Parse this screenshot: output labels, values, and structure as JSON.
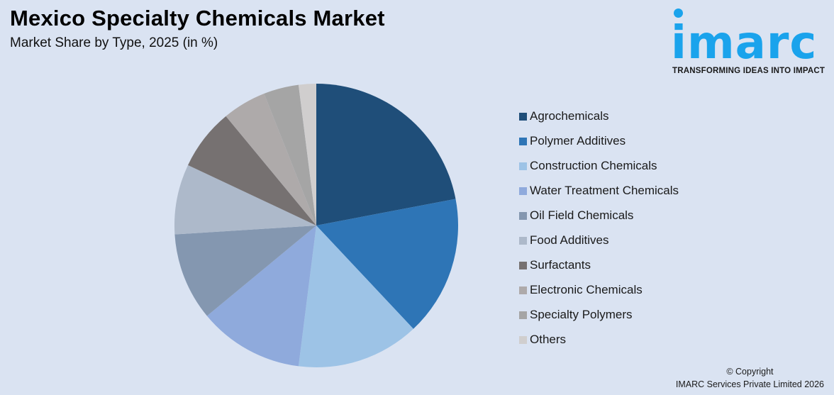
{
  "header": {
    "title": "Mexico Specialty Chemicals Market",
    "subtitle": "Market Share by Type, 2025 (in %)"
  },
  "logo": {
    "wordmark": "imarc",
    "tagline": "TRANSFORMING IDEAS INTO IMPACT",
    "color": "#1aa3ec"
  },
  "footer": {
    "copyright": "© Copyright",
    "company": "IMARC Services Private Limited 2026"
  },
  "chart_data": {
    "type": "pie",
    "title": "Mexico Specialty Chemicals Market",
    "subtitle": "Market Share by Type, 2025 (in %)",
    "legend_position": "right",
    "start_angle_deg": 0,
    "direction": "clockwise",
    "categories": [
      "Agrochemicals",
      "Polymer Additives",
      "Construction Chemicals",
      "Water Treatment Chemicals",
      "Oil Field Chemicals",
      "Food Additives",
      "Surfactants",
      "Electronic Chemicals",
      "Specialty Polymers",
      "Others"
    ],
    "values": [
      22,
      16,
      14,
      12,
      10,
      8,
      7,
      5,
      4,
      2
    ],
    "colors": [
      "#1f4e79",
      "#2e75b6",
      "#9dc3e6",
      "#8faadc",
      "#8497b0",
      "#adb9ca",
      "#767171",
      "#aeaaaa",
      "#a5a5a5",
      "#d0cece"
    ]
  },
  "legend": {
    "items": [
      {
        "label": "Agrochemicals",
        "color": "#1f4e79"
      },
      {
        "label": "Polymer Additives",
        "color": "#2e75b6"
      },
      {
        "label": "Construction Chemicals",
        "color": "#9dc3e6"
      },
      {
        "label": "Water Treatment Chemicals",
        "color": "#8faadc"
      },
      {
        "label": "Oil Field Chemicals",
        "color": "#8497b0"
      },
      {
        "label": "Food Additives",
        "color": "#adb9ca"
      },
      {
        "label": "Surfactants",
        "color": "#767171"
      },
      {
        "label": "Electronic Chemicals",
        "color": "#aeaaaa"
      },
      {
        "label": "Specialty Polymers",
        "color": "#a5a5a5"
      },
      {
        "label": "Others",
        "color": "#d0cece"
      }
    ]
  }
}
